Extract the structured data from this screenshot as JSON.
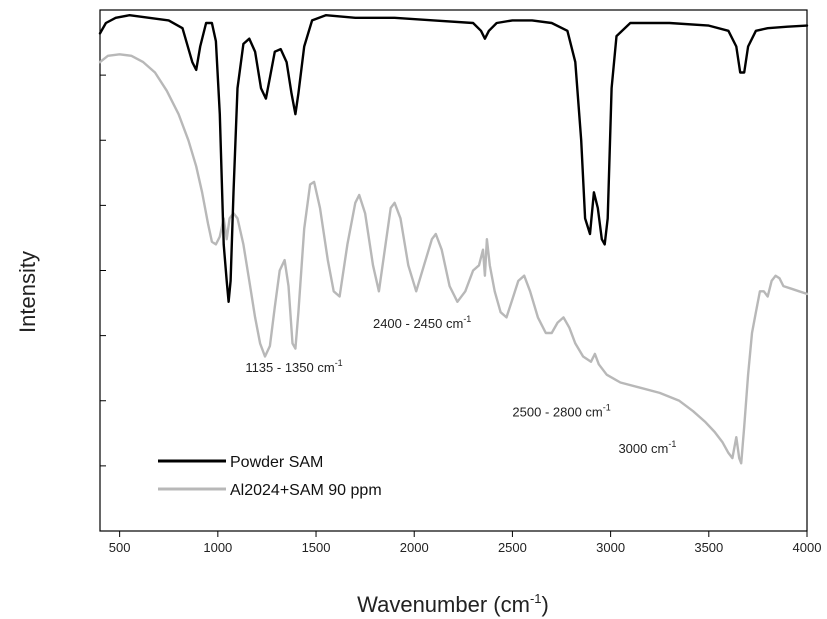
{
  "chart_data": {
    "type": "line",
    "xlabel": "Wavenumber (cm",
    "xlabel_sup": "-1",
    "xlabel_close": ")",
    "ylabel": "Intensity",
    "xlim": [
      400,
      4000
    ],
    "ylim": [
      0,
      1
    ],
    "xticks": [
      500,
      1000,
      1500,
      2000,
      2500,
      3000,
      3500,
      4000
    ],
    "grid": false,
    "legend_position": "bottom-left",
    "series": [
      {
        "name": "Powder SAM",
        "color": "#000000",
        "points": [
          [
            400,
            0.955
          ],
          [
            430,
            0.975
          ],
          [
            480,
            0.985
          ],
          [
            550,
            0.99
          ],
          [
            650,
            0.985
          ],
          [
            750,
            0.98
          ],
          [
            820,
            0.965
          ],
          [
            870,
            0.9
          ],
          [
            890,
            0.885
          ],
          [
            910,
            0.93
          ],
          [
            940,
            0.975
          ],
          [
            970,
            0.975
          ],
          [
            990,
            0.94
          ],
          [
            1010,
            0.8
          ],
          [
            1030,
            0.55
          ],
          [
            1045,
            0.48
          ],
          [
            1055,
            0.44
          ],
          [
            1065,
            0.48
          ],
          [
            1080,
            0.65
          ],
          [
            1100,
            0.85
          ],
          [
            1130,
            0.935
          ],
          [
            1160,
            0.945
          ],
          [
            1190,
            0.92
          ],
          [
            1220,
            0.85
          ],
          [
            1245,
            0.83
          ],
          [
            1265,
            0.87
          ],
          [
            1290,
            0.92
          ],
          [
            1320,
            0.925
          ],
          [
            1350,
            0.9
          ],
          [
            1375,
            0.84
          ],
          [
            1395,
            0.8
          ],
          [
            1410,
            0.84
          ],
          [
            1440,
            0.93
          ],
          [
            1480,
            0.98
          ],
          [
            1550,
            0.99
          ],
          [
            1700,
            0.985
          ],
          [
            1900,
            0.985
          ],
          [
            2100,
            0.98
          ],
          [
            2300,
            0.975
          ],
          [
            2340,
            0.96
          ],
          [
            2360,
            0.945
          ],
          [
            2380,
            0.96
          ],
          [
            2420,
            0.975
          ],
          [
            2500,
            0.98
          ],
          [
            2600,
            0.98
          ],
          [
            2700,
            0.975
          ],
          [
            2780,
            0.96
          ],
          [
            2820,
            0.9
          ],
          [
            2850,
            0.75
          ],
          [
            2870,
            0.6
          ],
          [
            2895,
            0.57
          ],
          [
            2915,
            0.65
          ],
          [
            2935,
            0.62
          ],
          [
            2955,
            0.56
          ],
          [
            2970,
            0.55
          ],
          [
            2985,
            0.6
          ],
          [
            3005,
            0.85
          ],
          [
            3030,
            0.95
          ],
          [
            3100,
            0.975
          ],
          [
            3300,
            0.975
          ],
          [
            3500,
            0.97
          ],
          [
            3600,
            0.96
          ],
          [
            3640,
            0.93
          ],
          [
            3660,
            0.88
          ],
          [
            3680,
            0.88
          ],
          [
            3700,
            0.93
          ],
          [
            3740,
            0.96
          ],
          [
            3800,
            0.965
          ],
          [
            3900,
            0.968
          ],
          [
            4000,
            0.97
          ]
        ]
      },
      {
        "name": "Al2024+SAM 90 ppm",
        "color": "#b8b8b8",
        "points": [
          [
            400,
            0.9
          ],
          [
            440,
            0.912
          ],
          [
            500,
            0.915
          ],
          [
            560,
            0.912
          ],
          [
            620,
            0.9
          ],
          [
            680,
            0.88
          ],
          [
            740,
            0.845
          ],
          [
            800,
            0.8
          ],
          [
            850,
            0.75
          ],
          [
            890,
            0.7
          ],
          [
            920,
            0.65
          ],
          [
            950,
            0.59
          ],
          [
            970,
            0.555
          ],
          [
            990,
            0.55
          ],
          [
            1010,
            0.565
          ],
          [
            1030,
            0.6
          ],
          [
            1045,
            0.56
          ],
          [
            1060,
            0.6
          ],
          [
            1080,
            0.61
          ],
          [
            1100,
            0.6
          ],
          [
            1130,
            0.55
          ],
          [
            1160,
            0.48
          ],
          [
            1190,
            0.41
          ],
          [
            1215,
            0.36
          ],
          [
            1240,
            0.335
          ],
          [
            1265,
            0.355
          ],
          [
            1290,
            0.43
          ],
          [
            1315,
            0.5
          ],
          [
            1340,
            0.52
          ],
          [
            1360,
            0.47
          ],
          [
            1380,
            0.36
          ],
          [
            1395,
            0.35
          ],
          [
            1410,
            0.42
          ],
          [
            1440,
            0.58
          ],
          [
            1470,
            0.665
          ],
          [
            1490,
            0.67
          ],
          [
            1520,
            0.62
          ],
          [
            1560,
            0.52
          ],
          [
            1590,
            0.46
          ],
          [
            1620,
            0.45
          ],
          [
            1660,
            0.55
          ],
          [
            1700,
            0.63
          ],
          [
            1720,
            0.645
          ],
          [
            1750,
            0.61
          ],
          [
            1790,
            0.51
          ],
          [
            1820,
            0.46
          ],
          [
            1850,
            0.54
          ],
          [
            1880,
            0.62
          ],
          [
            1900,
            0.63
          ],
          [
            1930,
            0.6
          ],
          [
            1970,
            0.51
          ],
          [
            2010,
            0.46
          ],
          [
            2050,
            0.51
          ],
          [
            2090,
            0.56
          ],
          [
            2110,
            0.57
          ],
          [
            2140,
            0.54
          ],
          [
            2180,
            0.47
          ],
          [
            2220,
            0.44
          ],
          [
            2260,
            0.46
          ],
          [
            2300,
            0.5
          ],
          [
            2330,
            0.51
          ],
          [
            2350,
            0.54
          ],
          [
            2360,
            0.49
          ],
          [
            2370,
            0.56
          ],
          [
            2385,
            0.51
          ],
          [
            2410,
            0.46
          ],
          [
            2440,
            0.42
          ],
          [
            2470,
            0.41
          ],
          [
            2500,
            0.445
          ],
          [
            2530,
            0.48
          ],
          [
            2560,
            0.49
          ],
          [
            2590,
            0.46
          ],
          [
            2630,
            0.41
          ],
          [
            2670,
            0.38
          ],
          [
            2700,
            0.38
          ],
          [
            2730,
            0.4
          ],
          [
            2760,
            0.41
          ],
          [
            2790,
            0.39
          ],
          [
            2820,
            0.36
          ],
          [
            2860,
            0.335
          ],
          [
            2900,
            0.325
          ],
          [
            2920,
            0.34
          ],
          [
            2940,
            0.32
          ],
          [
            2980,
            0.3
          ],
          [
            3050,
            0.285
          ],
          [
            3150,
            0.275
          ],
          [
            3250,
            0.265
          ],
          [
            3350,
            0.25
          ],
          [
            3420,
            0.23
          ],
          [
            3480,
            0.21
          ],
          [
            3530,
            0.19
          ],
          [
            3570,
            0.17
          ],
          [
            3600,
            0.15
          ],
          [
            3620,
            0.14
          ],
          [
            3640,
            0.18
          ],
          [
            3655,
            0.14
          ],
          [
            3665,
            0.13
          ],
          [
            3680,
            0.2
          ],
          [
            3700,
            0.3
          ],
          [
            3720,
            0.38
          ],
          [
            3740,
            0.42
          ],
          [
            3760,
            0.46
          ],
          [
            3780,
            0.46
          ],
          [
            3800,
            0.45
          ],
          [
            3820,
            0.48
          ],
          [
            3840,
            0.49
          ],
          [
            3860,
            0.485
          ],
          [
            3880,
            0.47
          ],
          [
            3920,
            0.465
          ],
          [
            3960,
            0.46
          ],
          [
            4000,
            0.455
          ]
        ]
      }
    ],
    "annotations": [
      {
        "text": "1135 - 1350 cm",
        "sup": "-1",
        "x": 1140,
        "y": 0.305
      },
      {
        "text": "2400 - 2450 cm",
        "sup": "-1",
        "x": 1790,
        "y": 0.39
      },
      {
        "text": "2500 - 2800 cm",
        "sup": "-1",
        "x": 2500,
        "y": 0.22
      },
      {
        "text": "3000 cm",
        "sup": "-1",
        "x": 3040,
        "y": 0.15
      }
    ],
    "legend": [
      {
        "label": "Powder SAM",
        "color": "#000000"
      },
      {
        "label": "Al2024+SAM 90 ppm",
        "color": "#b8b8b8"
      }
    ]
  }
}
